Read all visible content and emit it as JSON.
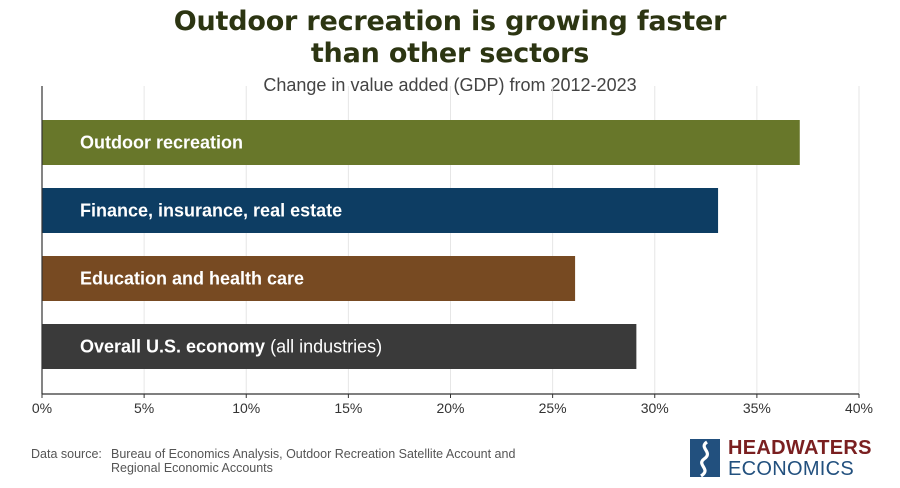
{
  "title_line1": "Outdoor recreation is growing faster",
  "title_line2": "than other sectors",
  "subtitle": "Change in value added (GDP) from 2012-2023",
  "chart_data": {
    "type": "bar",
    "orientation": "horizontal",
    "categories": [
      {
        "label": "Outdoor recreation",
        "note": "",
        "color": "#68772a"
      },
      {
        "label": "Finance, insurance, real estate",
        "note": "",
        "color": "#0d3d63"
      },
      {
        "label": "Education and health care",
        "note": "",
        "color": "#774a22"
      },
      {
        "label": "Overall U.S. economy",
        "note": "(all industries)",
        "color": "#3a3a3a"
      }
    ],
    "values": [
      37.1,
      33.1,
      26.1,
      29.1
    ],
    "xlim": [
      0,
      40
    ],
    "ticks": [
      0,
      5,
      10,
      15,
      20,
      25,
      30,
      35,
      40
    ],
    "tick_labels": [
      "0%",
      "5%",
      "10%",
      "15%",
      "20%",
      "25%",
      "30%",
      "35%",
      "40%"
    ],
    "grid": true
  },
  "source": {
    "key": "Data source:",
    "text": "Bureau of Economics Analysis, Outdoor Recreation Satellite Account and Regional Economic Accounts"
  },
  "logo": {
    "line1": "HEADWATERS",
    "line2": "ECONOMICS"
  }
}
